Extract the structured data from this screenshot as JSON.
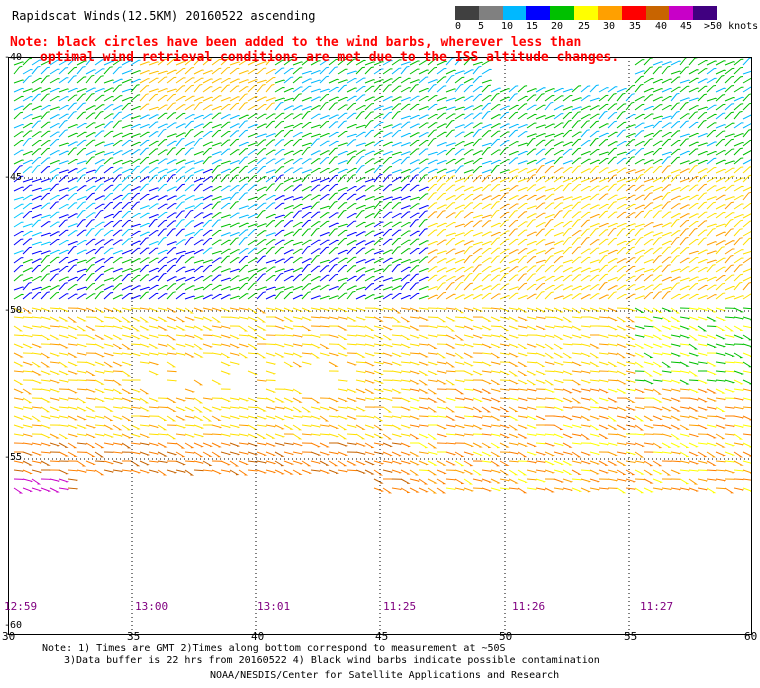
{
  "title": "Rapidscat Winds(12.5KM) 20160522 ascending",
  "note_line1": "Note: black circles have been added to the wind barbs, wherever less than",
  "note_line2": "optimal wind retrieval conditions are met due to the ISS altitude changes.",
  "color_key": {
    "labels": [
      "0",
      "5",
      "10",
      "15",
      "20",
      "25",
      "30",
      "35",
      "40",
      "45",
      ">50 knots"
    ],
    "colors": [
      "#404040",
      "#808080",
      "#00b8ff",
      "#0000ff",
      "#00c000",
      "#ffff00",
      "#ffa000",
      "#ff0000",
      "#c86400",
      "#c800c8",
      "#400080"
    ]
  },
  "lat_labels": [
    "-40",
    "-45",
    "-50",
    "-55",
    "-60"
  ],
  "lon_labels": [
    "30",
    "35",
    "40",
    "45",
    "50",
    "55",
    "60"
  ],
  "time_labels": [
    "12:59",
    "13:00",
    "13:01",
    "11:25",
    "11:26",
    "11:27"
  ],
  "footer": {
    "line1": "Note: 1) Times are GMT 2)Times along bottom correspond to measurement at ~50S",
    "line2": "3)Data buffer is 22 hrs from 20160522 4) Black wind barbs indicate possible contamination",
    "line3": "NOAA/NESDIS/Center for Satellite Applications and Research"
  },
  "map_data": {
    "lon_range": [
      30,
      60
    ],
    "lat_range": [
      -40,
      -60
    ],
    "grid": true
  }
}
